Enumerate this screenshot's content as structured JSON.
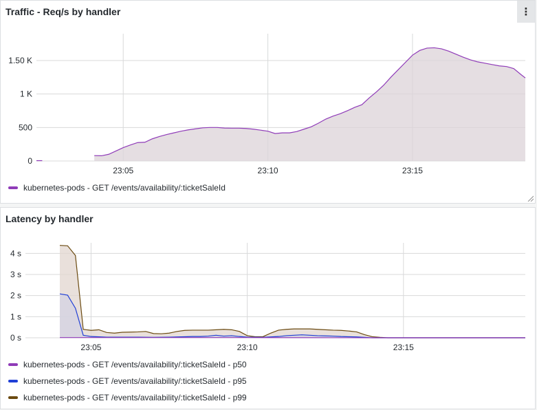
{
  "chart_data": [
    {
      "type": "area",
      "title": "Traffic - Req/s by handler",
      "y_ticks": [
        {
          "value": 0,
          "label": "0"
        },
        {
          "value": 500,
          "label": "500"
        },
        {
          "value": 1000,
          "label": "1 K"
        },
        {
          "value": 1500,
          "label": "1.50 K"
        }
      ],
      "ylim": [
        0,
        1900
      ],
      "x_ticks": [
        {
          "value": 5,
          "label": "23:05"
        },
        {
          "value": 10,
          "label": "23:10"
        },
        {
          "value": 15,
          "label": "23:15"
        }
      ],
      "xlim": [
        2.0,
        18.9
      ],
      "grid": true,
      "legend_position": "bottom-left",
      "series": [
        {
          "name": "kubernetes-pods - GET /events/availability/:ticketSaleId",
          "color": "#8f3bb8",
          "fill": "#dcd3d8",
          "segments": [
            [
              [
                2.0,
                5
              ],
              [
                2.2,
                5
              ]
            ],
            [
              [
                4.0,
                80
              ],
              [
                4.25,
                78
              ],
              [
                4.5,
                100
              ],
              [
                4.75,
                150
              ],
              [
                5.0,
                200
              ],
              [
                5.25,
                240
              ],
              [
                5.5,
                275
              ],
              [
                5.75,
                280
              ],
              [
                6.0,
                330
              ],
              [
                6.25,
                365
              ],
              [
                6.5,
                395
              ],
              [
                6.75,
                420
              ],
              [
                7.0,
                445
              ],
              [
                7.25,
                465
              ],
              [
                7.5,
                480
              ],
              [
                7.75,
                495
              ],
              [
                8.0,
                500
              ],
              [
                8.25,
                500
              ],
              [
                8.5,
                492
              ],
              [
                8.75,
                490
              ],
              [
                9.0,
                490
              ],
              [
                9.25,
                485
              ],
              [
                9.5,
                475
              ],
              [
                9.75,
                460
              ],
              [
                10.0,
                445
              ],
              [
                10.25,
                410
              ],
              [
                10.5,
                420
              ],
              [
                10.75,
                420
              ],
              [
                11.0,
                440
              ],
              [
                11.25,
                475
              ],
              [
                11.5,
                510
              ],
              [
                11.75,
                565
              ],
              [
                12.0,
                625
              ],
              [
                12.25,
                670
              ],
              [
                12.5,
                705
              ],
              [
                12.75,
                750
              ],
              [
                13.0,
                800
              ],
              [
                13.25,
                840
              ],
              [
                13.5,
                940
              ],
              [
                13.75,
                1030
              ],
              [
                14.0,
                1130
              ],
              [
                14.25,
                1250
              ],
              [
                14.5,
                1360
              ],
              [
                14.75,
                1470
              ],
              [
                15.0,
                1580
              ],
              [
                15.25,
                1650
              ],
              [
                15.5,
                1685
              ],
              [
                15.75,
                1690
              ],
              [
                16.0,
                1675
              ],
              [
                16.25,
                1640
              ],
              [
                16.5,
                1595
              ],
              [
                16.75,
                1550
              ],
              [
                17.0,
                1510
              ],
              [
                17.25,
                1480
              ],
              [
                17.5,
                1460
              ],
              [
                17.75,
                1440
              ],
              [
                18.0,
                1420
              ],
              [
                18.25,
                1410
              ],
              [
                18.5,
                1380
              ],
              [
                18.75,
                1290
              ],
              [
                18.9,
                1240
              ]
            ]
          ]
        }
      ]
    },
    {
      "type": "area",
      "title": "Latency by handler",
      "y_ticks": [
        {
          "value": 0,
          "label": "0 s"
        },
        {
          "value": 1,
          "label": "1 s"
        },
        {
          "value": 2,
          "label": "2 s"
        },
        {
          "value": 3,
          "label": "3 s"
        },
        {
          "value": 4,
          "label": "4 s"
        }
      ],
      "ylim": [
        0,
        4.5
      ],
      "x_ticks": [
        {
          "value": 5,
          "label": "23:05"
        },
        {
          "value": 10,
          "label": "23:10"
        },
        {
          "value": 15,
          "label": "23:15"
        }
      ],
      "xlim": [
        2.9,
        18.9
      ],
      "grid": true,
      "legend_position": "bottom-left",
      "series": [
        {
          "name": "kubernetes-pods - GET /events/availability/:ticketSaleId - p99",
          "color": "#6b4a10",
          "fill": "#e1d6cf",
          "segments": [
            [
              [
                4.0,
                4.38
              ],
              [
                4.25,
                4.36
              ],
              [
                4.5,
                3.9
              ],
              [
                4.75,
                0.4
              ],
              [
                5.0,
                0.35
              ],
              [
                5.25,
                0.38
              ],
              [
                5.5,
                0.25
              ],
              [
                5.75,
                0.22
              ],
              [
                6.0,
                0.26
              ],
              [
                6.25,
                0.27
              ],
              [
                6.5,
                0.28
              ],
              [
                6.75,
                0.3
              ],
              [
                7.0,
                0.2
              ],
              [
                7.25,
                0.19
              ],
              [
                7.5,
                0.22
              ],
              [
                7.75,
                0.3
              ],
              [
                8.0,
                0.35
              ],
              [
                8.25,
                0.36
              ],
              [
                8.5,
                0.36
              ],
              [
                8.75,
                0.36
              ],
              [
                9.0,
                0.38
              ],
              [
                9.25,
                0.4
              ],
              [
                9.5,
                0.38
              ],
              [
                9.75,
                0.3
              ],
              [
                10.0,
                0.1
              ],
              [
                10.25,
                0.05
              ],
              [
                10.5,
                0.05
              ],
              [
                10.75,
                0.22
              ],
              [
                11.0,
                0.36
              ],
              [
                11.25,
                0.4
              ],
              [
                11.5,
                0.42
              ],
              [
                11.75,
                0.42
              ],
              [
                12.0,
                0.42
              ],
              [
                12.25,
                0.4
              ],
              [
                12.5,
                0.38
              ],
              [
                12.75,
                0.36
              ],
              [
                13.0,
                0.35
              ],
              [
                13.25,
                0.32
              ],
              [
                13.5,
                0.28
              ],
              [
                13.75,
                0.15
              ],
              [
                14.0,
                0.05
              ],
              [
                14.25,
                0.02
              ],
              [
                14.5,
                0.0
              ],
              [
                16.0,
                0.0
              ],
              [
                18.9,
                0.0
              ]
            ]
          ]
        },
        {
          "name": "kubernetes-pods - GET /events/availability/:ticketSaleId - p95",
          "color": "#1f3fd6",
          "fill": "#d3d3e3",
          "segments": [
            [
              [
                4.0,
                2.08
              ],
              [
                4.25,
                2.02
              ],
              [
                4.5,
                1.4
              ],
              [
                4.75,
                0.12
              ],
              [
                5.0,
                0.06
              ],
              [
                5.5,
                0.03
              ],
              [
                6.0,
                0.03
              ],
              [
                6.5,
                0.03
              ],
              [
                7.0,
                0.02
              ],
              [
                7.5,
                0.03
              ],
              [
                8.0,
                0.05
              ],
              [
                8.25,
                0.06
              ],
              [
                8.5,
                0.06
              ],
              [
                8.75,
                0.08
              ],
              [
                9.0,
                0.12
              ],
              [
                9.25,
                0.08
              ],
              [
                9.5,
                0.1
              ],
              [
                9.75,
                0.06
              ],
              [
                10.0,
                0.03
              ],
              [
                10.5,
                0.02
              ],
              [
                10.75,
                0.04
              ],
              [
                11.0,
                0.06
              ],
              [
                11.25,
                0.1
              ],
              [
                11.5,
                0.12
              ],
              [
                11.75,
                0.14
              ],
              [
                12.0,
                0.12
              ],
              [
                12.25,
                0.1
              ],
              [
                12.5,
                0.09
              ],
              [
                12.75,
                0.08
              ],
              [
                13.0,
                0.06
              ],
              [
                13.25,
                0.05
              ],
              [
                13.5,
                0.04
              ],
              [
                13.75,
                0.02
              ],
              [
                14.0,
                0.0
              ],
              [
                18.9,
                0.0
              ]
            ]
          ]
        },
        {
          "name": "kubernetes-pods - GET /events/availability/:ticketSaleId - p50",
          "color": "#8f3bb8",
          "fill": "#d9c6d9",
          "segments": [
            [
              [
                4.0,
                0.01
              ],
              [
                6.0,
                0.01
              ],
              [
                10.0,
                0.01
              ],
              [
                14.0,
                0.0
              ],
              [
                18.9,
                0.0
              ]
            ]
          ]
        }
      ],
      "legend": [
        {
          "name": "kubernetes-pods - GET /events/availability/:ticketSaleId - p50",
          "color": "#8f3bb8"
        },
        {
          "name": "kubernetes-pods - GET /events/availability/:ticketSaleId - p95",
          "color": "#1f3fd6"
        },
        {
          "name": "kubernetes-pods - GET /events/availability/:ticketSaleId - p99",
          "color": "#6b4a10"
        }
      ]
    }
  ],
  "menu_icon": "more-vertical-icon",
  "menu_glyph": "⋮"
}
